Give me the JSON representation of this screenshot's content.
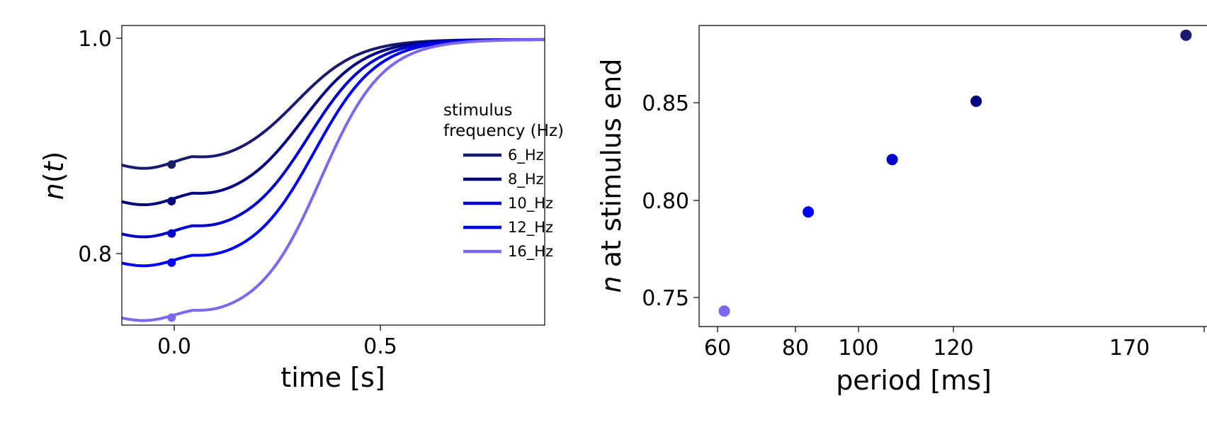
{
  "chart_data": [
    {
      "type": "line",
      "xlabel": "time [s]",
      "ylabel_symbol": "n",
      "ylabel_arg": "t",
      "xlim": [
        -0.12,
        0.9
      ],
      "ylim": [
        0.735,
        1.013
      ],
      "xticks": [
        "0.0",
        "0.5"
      ],
      "yticks": [
        "1.0",
        "0.8"
      ],
      "legend_title": [
        "stimulus",
        "frequency (Hz)"
      ],
      "legend_position": "right",
      "grid": false,
      "series": [
        {
          "name": "6_Hz",
          "color": "#191970",
          "y0": 0.884
        },
        {
          "name": "8_Hz",
          "color": "#000080",
          "y0": 0.85
        },
        {
          "name": "10_Hz",
          "color": "#0000cd",
          "y0": 0.82
        },
        {
          "name": "12_Hz",
          "color": "#0000ff",
          "y0": 0.793
        },
        {
          "name": "16_Hz",
          "color": "#7b68ee",
          "y0": 0.742
        }
      ],
      "markers": [
        {
          "x": 0.0,
          "y": 0.884,
          "color": "#191970"
        },
        {
          "x": 0.0,
          "y": 0.85,
          "color": "#000080"
        },
        {
          "x": 0.0,
          "y": 0.82,
          "color": "#0000cd"
        },
        {
          "x": 0.0,
          "y": 0.793,
          "color": "#0000ff"
        },
        {
          "x": 0.0,
          "y": 0.742,
          "color": "#7b68ee"
        }
      ]
    },
    {
      "type": "scatter",
      "xlabel": "period [ms]",
      "ylabel_symbol": "n",
      "ylabel_rest": " at stimulus end",
      "xlim": [
        54,
        175
      ],
      "ylim": [
        0.734,
        0.889
      ],
      "xticks": [
        "60",
        "80",
        "100",
        "120",
        "170"
      ],
      "yticks": [
        "0.85",
        "0.80",
        "0.75"
      ],
      "grid": false,
      "points": [
        {
          "x": 60,
          "y": 0.742,
          "color": "#7b68ee"
        },
        {
          "x": 80,
          "y": 0.793,
          "color": "#0000ff"
        },
        {
          "x": 100,
          "y": 0.82,
          "color": "#0000cd"
        },
        {
          "x": 120,
          "y": 0.85,
          "color": "#000080"
        },
        {
          "x": 170,
          "y": 0.884,
          "color": "#191970"
        }
      ]
    }
  ]
}
